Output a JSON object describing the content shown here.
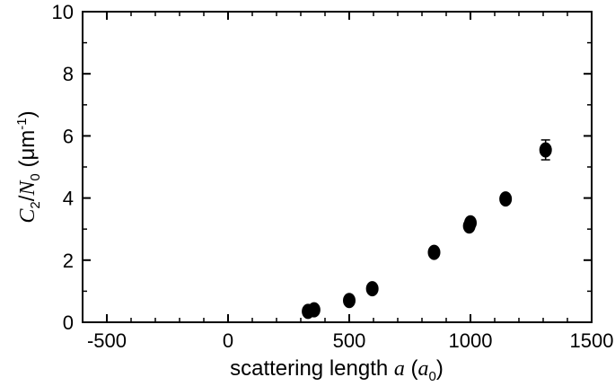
{
  "chart_data": {
    "type": "scatter",
    "xlabel": {
      "prefix": "scattering length ",
      "var": "a",
      "open": " (",
      "unit_base": "a",
      "unit_sub": "0",
      "close": ")"
    },
    "ylabel": {
      "var1": "C",
      "sub1": "2",
      "slash": "/",
      "var2": "N",
      "sub2": "0",
      "unit_open": " (μm",
      "unit_sup": "-1",
      "unit_close": ")"
    },
    "xlim": [
      -600,
      1500
    ],
    "ylim": [
      0,
      10
    ],
    "x_ticks": [
      -500,
      0,
      500,
      1000,
      1500
    ],
    "x_tick_labels": [
      "-500",
      "0",
      "500",
      "1000",
      "1500"
    ],
    "y_ticks": [
      0,
      2,
      4,
      6,
      8,
      10
    ],
    "y_tick_labels": [
      "0",
      "2",
      "4",
      "6",
      "8",
      "10"
    ],
    "grid": false,
    "legend": "none",
    "marker_color": "#000000",
    "series": [
      {
        "points": [
          {
            "x": 330,
            "y": 0.35,
            "err": 0.1
          },
          {
            "x": 355,
            "y": 0.4,
            "err": 0.1
          },
          {
            "x": 500,
            "y": 0.7,
            "err": 0.1
          },
          {
            "x": 595,
            "y": 1.08,
            "err": 0.1
          },
          {
            "x": 850,
            "y": 2.25,
            "err": 0.12
          },
          {
            "x": 995,
            "y": 3.1,
            "err": 0.15
          },
          {
            "x": 1000,
            "y": 3.2,
            "err": 0.15
          },
          {
            "x": 1145,
            "y": 3.97,
            "err": 0.15
          },
          {
            "x": 1310,
            "y": 5.55,
            "err": 0.32
          }
        ]
      }
    ]
  }
}
